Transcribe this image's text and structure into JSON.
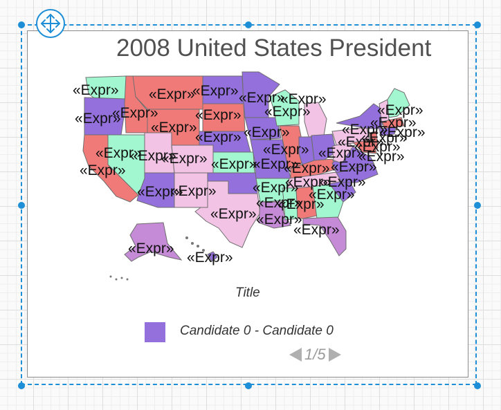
{
  "map": {
    "title": "2008 United States President",
    "label_text": "«Expr»",
    "colors": {
      "purple": "#9370db",
      "red": "#f07a78",
      "pink": "#f3c3e6",
      "mint": "#a2f7d0",
      "orchid": "#c68bd6",
      "border": "#6e6e6e"
    }
  },
  "legend": {
    "title": "Title",
    "items": [
      {
        "label": "Candidate 0 - Candidate 0",
        "color": "#9370db"
      }
    ]
  },
  "pager": {
    "text": "1/5"
  }
}
